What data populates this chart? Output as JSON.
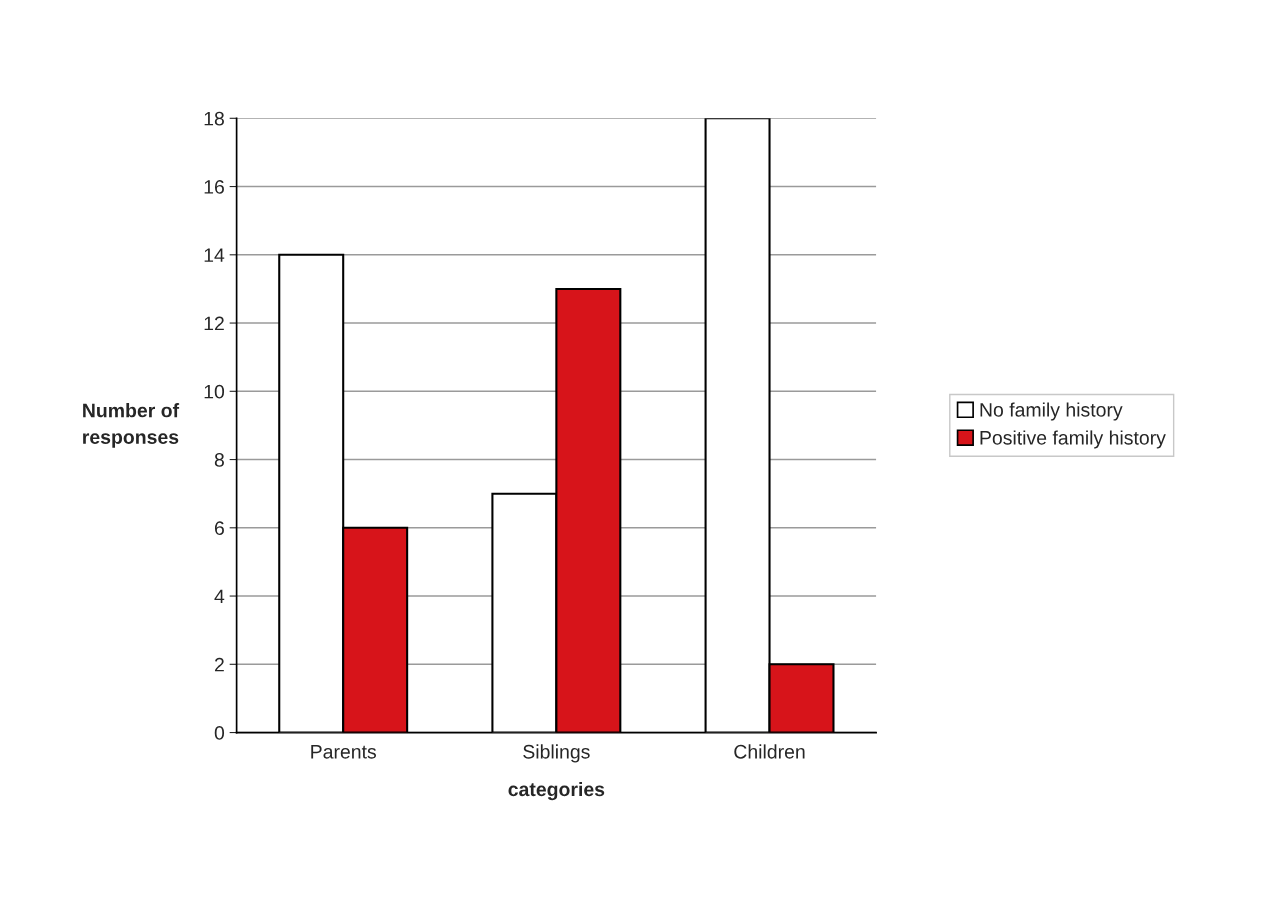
{
  "chart_data": {
    "type": "bar",
    "xlabel": "categories",
    "ylabel": "Number of\nresponses",
    "categories": [
      "Parents",
      "Siblings",
      "Children"
    ],
    "series": [
      {
        "name": "No family history",
        "color": "#ffffff",
        "values": [
          14,
          7,
          18
        ]
      },
      {
        "name": "Positive family history",
        "color": "#d7141a",
        "values": [
          6,
          13,
          2
        ]
      }
    ],
    "ylim": [
      0,
      18
    ],
    "yticks": [
      0,
      2,
      4,
      6,
      8,
      10,
      12,
      14,
      16,
      18
    ],
    "grid": "y",
    "legend": "right"
  }
}
